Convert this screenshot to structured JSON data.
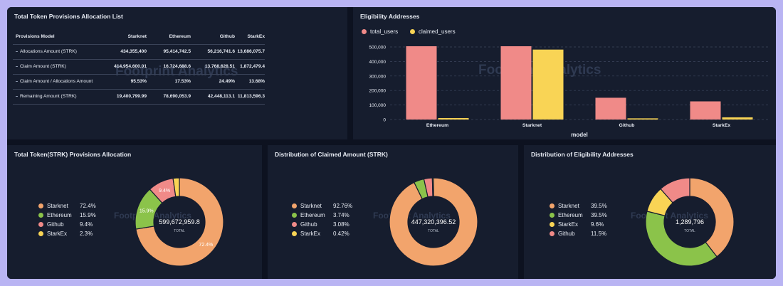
{
  "watermark": "Footprint Analytics",
  "table": {
    "title": "Total Token Provisions Allocation List",
    "headers": [
      "Provisions Model",
      "Starknet",
      "Ethereum",
      "Github",
      "StarkEx"
    ],
    "rows": [
      [
        "Allocations Amount (STRK)",
        "434,355,400",
        "95,414,742.5",
        "56,216,741.6",
        "13,686,075.7"
      ],
      [
        "Claim Amount (STRK)",
        "414,954,600.01",
        "16,724,688.6",
        "13,768,628.51",
        "1,872,479.4"
      ],
      [
        "Claim Amount / Allocations Amount",
        "95.53%",
        "17.53%",
        "24.49%",
        "13.68%"
      ],
      [
        "Remaining Amount (STRK)",
        "19,400,799.99",
        "78,690,053.9",
        "42,448,113.1",
        "11,813,596.3"
      ]
    ]
  },
  "colors": {
    "starknet": "#f2a46c",
    "ethereum": "#8bc34a",
    "github": "#f08a88",
    "starkex": "#f9d455",
    "total_users": "#f08a88",
    "claimed_users": "#f9d455"
  },
  "chart_data": [
    {
      "type": "bar",
      "title": "Eligibility Addresses",
      "xlabel": "model",
      "categories": [
        "Ethereum",
        "Starknet",
        "Github",
        "StarkEx"
      ],
      "series": [
        {
          "name": "total_users",
          "values": [
            505000,
            505000,
            150000,
            125000
          ]
        },
        {
          "name": "claimed_users",
          "values": [
            10000,
            482000,
            8000,
            15000
          ]
        }
      ],
      "ylim": [
        0,
        500000
      ],
      "yticks": [
        "500,000",
        "400,000",
        "300,000",
        "200,000",
        "100,000",
        "0"
      ],
      "grid": true,
      "legend_position": "top-left"
    },
    {
      "type": "pie",
      "title": "Total Token(STRK) Provisions Allocation",
      "center_value": "599,672,959.8",
      "center_label": "TOTAL",
      "labels": [
        "Starknet",
        "Ethereum",
        "Github",
        "StarkEx"
      ],
      "values": [
        72.4,
        15.9,
        9.4,
        2.3
      ],
      "display": [
        "72.4%",
        "15.9%",
        "9.4%",
        "2.3%"
      ],
      "slice_labels": [
        "72.4%",
        "15.9%",
        "9.4%",
        ""
      ]
    },
    {
      "type": "pie",
      "title": "Distribution of Claimed Amount (STRK)",
      "center_value": "447,320,396.52",
      "center_label": "TOTAL",
      "labels": [
        "Starknet",
        "Ethereum",
        "Github",
        "StarkEx"
      ],
      "values": [
        92.76,
        3.74,
        3.08,
        0.42
      ],
      "display": [
        "92.76%",
        "3.74%",
        "3.08%",
        "0.42%"
      ],
      "slice_labels": [
        "",
        "",
        "",
        ""
      ]
    },
    {
      "type": "pie",
      "title": "Distribution of Eligibility Addresses",
      "center_value": "1,289,796",
      "center_label": "TOTAL",
      "labels": [
        "Starknet",
        "Ethereum",
        "StarkEx",
        "Github"
      ],
      "values": [
        39.5,
        39.5,
        9.6,
        11.5
      ],
      "display": [
        "39.5%",
        "39.5%",
        "9.6%",
        "11.5%"
      ],
      "slice_labels": [
        "",
        "",
        "",
        ""
      ]
    }
  ]
}
